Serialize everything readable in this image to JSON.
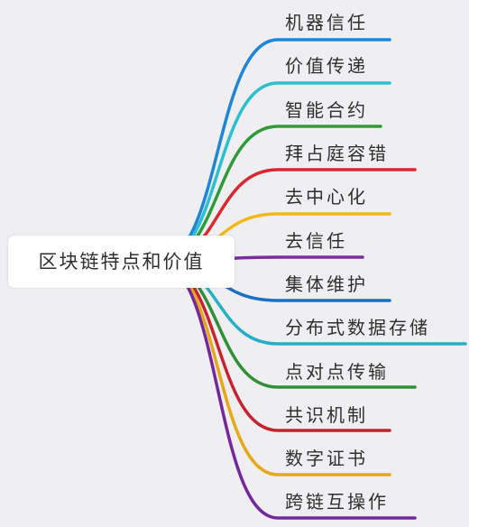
{
  "root": {
    "label": "区块链特点和价值"
  },
  "branches": [
    {
      "label": "机器信任",
      "color": "#1f86d6"
    },
    {
      "label": "价值传递",
      "color": "#2bbfd0"
    },
    {
      "label": "智能合约",
      "color": "#2f9a3a"
    },
    {
      "label": "拜占庭容错",
      "color": "#d92830"
    },
    {
      "label": "去中心化",
      "color": "#f2b818"
    },
    {
      "label": "去信任",
      "color": "#7b2da0"
    },
    {
      "label": "集体维护",
      "color": "#1a6fc6"
    },
    {
      "label": "分布式数据存储",
      "color": "#27afc6"
    },
    {
      "label": "点对点传输",
      "color": "#2f8f36"
    },
    {
      "label": "共识机制",
      "color": "#c62230"
    },
    {
      "label": "数字证书",
      "color": "#e6a817"
    },
    {
      "label": "跨链互操作",
      "color": "#74289c"
    }
  ]
}
